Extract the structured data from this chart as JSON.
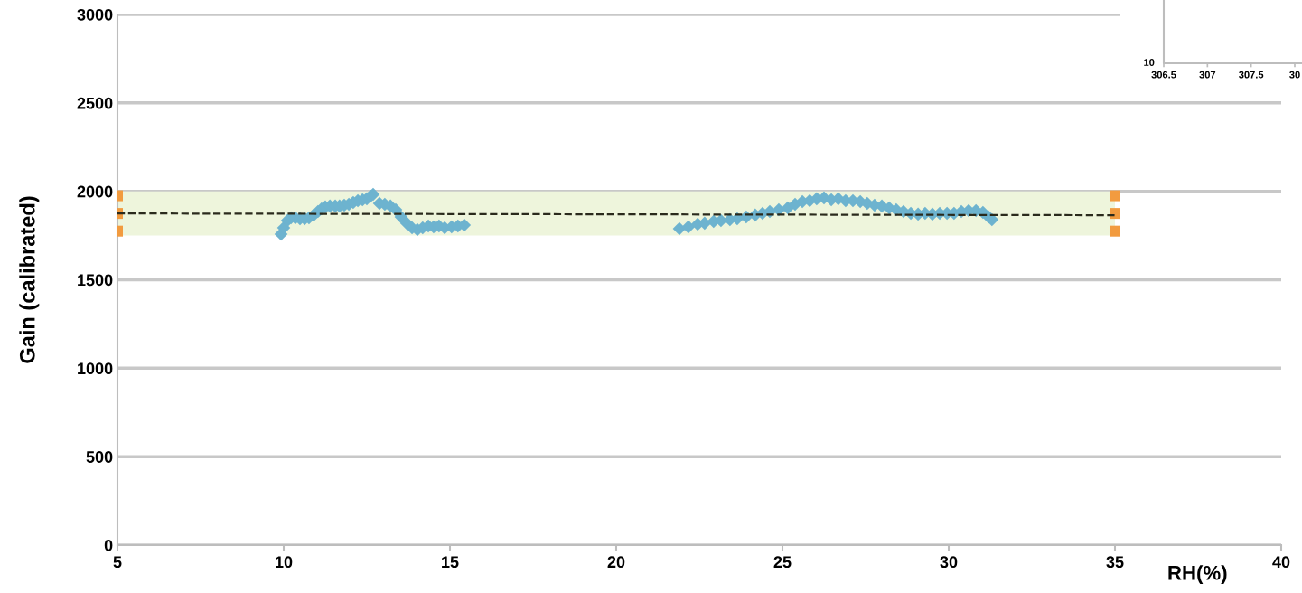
{
  "chart_data": [
    {
      "type": "scatter",
      "xlabel": "RH(%)",
      "ylabel": "Gain (calibrated)",
      "xlim": [
        5,
        40
      ],
      "xticks": [
        5,
        10,
        15,
        20,
        25,
        30,
        35,
        40
      ],
      "ylim": [
        0,
        3000
      ],
      "yticks": [
        0,
        500,
        1000,
        1500,
        2000,
        2500,
        3000
      ],
      "grid": "y",
      "bands": [
        {
          "axis": "y",
          "from": 1750,
          "to": 2000,
          "color": "#eef5dc"
        }
      ],
      "series": [
        {
          "marker": "diamond",
          "color": "#6db3cf",
          "x": [
            9.92,
            10.0,
            10.11,
            10.22,
            10.35,
            10.49,
            10.63,
            10.76,
            10.9,
            11.03,
            11.14,
            11.25,
            11.39,
            11.55,
            11.68,
            11.82,
            11.96,
            12.09,
            12.23,
            12.37,
            12.5,
            12.61,
            12.69,
            12.88,
            13.04,
            13.21,
            13.37,
            13.53,
            13.7,
            13.86,
            14.02,
            14.18,
            14.35,
            14.51,
            14.67,
            14.84,
            15.05,
            15.24,
            15.43,
            21.9,
            22.17,
            22.45,
            22.66,
            22.93,
            23.15,
            23.42,
            23.64,
            23.91,
            24.18,
            24.4,
            24.62,
            24.89,
            25.16,
            25.38,
            25.6,
            25.82,
            26.03,
            26.25,
            26.47,
            26.68,
            26.9,
            27.12,
            27.34,
            27.55,
            27.77,
            27.99,
            28.21,
            28.42,
            28.64,
            28.86,
            29.08,
            29.29,
            29.51,
            29.73,
            29.95,
            30.16,
            30.38,
            30.6,
            30.82,
            31.03,
            31.2,
            31.3
          ],
          "values": [
            1758,
            1794,
            1835,
            1850,
            1850,
            1845,
            1845,
            1850,
            1866,
            1886,
            1901,
            1912,
            1917,
            1917,
            1917,
            1922,
            1927,
            1937,
            1947,
            1952,
            1958,
            1973,
            1983,
            1932,
            1927,
            1917,
            1896,
            1855,
            1820,
            1794,
            1784,
            1794,
            1804,
            1799,
            1804,
            1794,
            1799,
            1804,
            1809,
            1789,
            1799,
            1814,
            1820,
            1830,
            1835,
            1840,
            1845,
            1855,
            1866,
            1876,
            1886,
            1896,
            1906,
            1927,
            1942,
            1947,
            1958,
            1963,
            1952,
            1958,
            1947,
            1947,
            1942,
            1932,
            1922,
            1917,
            1906,
            1896,
            1886,
            1876,
            1871,
            1876,
            1871,
            1876,
            1876,
            1876,
            1886,
            1891,
            1891,
            1881,
            1855,
            1840
          ]
        },
        {
          "type": "scatter",
          "marker": "square",
          "color": "#f29b3f",
          "x": [
            5,
            5,
            5,
            35,
            35,
            35
          ],
          "values": [
            1975,
            1875,
            1775,
            1975,
            1875,
            1775
          ]
        },
        {
          "type": "line",
          "marker": "none",
          "line_style": "dashed",
          "color": "#2a2a1c",
          "x": [
            5,
            35
          ],
          "values": [
            1875,
            1865
          ]
        }
      ]
    },
    {
      "type": "other",
      "annotations": [
        "10",
        "306.5",
        "307",
        "307.5",
        "30"
      ]
    }
  ]
}
